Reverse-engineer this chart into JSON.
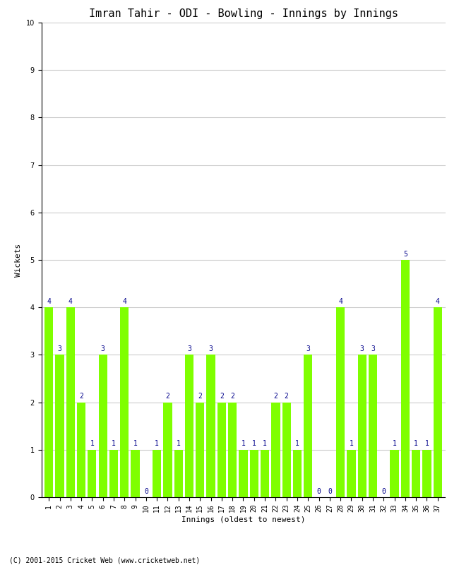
{
  "title": "Imran Tahir - ODI - Bowling - Innings by Innings",
  "xlabel": "Innings (oldest to newest)",
  "ylabel": "Wickets",
  "wickets": [
    4,
    3,
    4,
    2,
    1,
    3,
    1,
    4,
    1,
    0,
    1,
    2,
    1,
    3,
    2,
    3,
    2,
    2,
    1,
    1,
    1,
    2,
    2,
    1,
    3,
    0,
    0,
    4,
    1,
    3,
    3,
    0,
    1,
    5,
    1,
    1,
    4
  ],
  "bar_color": "#7FFF00",
  "label_color": "#00008B",
  "bg_color": "#FFFFFF",
  "ylim": [
    0,
    10
  ],
  "yticks": [
    0,
    1,
    2,
    3,
    4,
    5,
    6,
    7,
    8,
    9,
    10
  ],
  "grid_color": "#CCCCCC",
  "title_fontsize": 11,
  "axis_label_fontsize": 8,
  "tick_fontsize": 7,
  "bar_label_fontsize": 7,
  "copyright": "(C) 2001-2015 Cricket Web (www.cricketweb.net)",
  "copyright_fontsize": 7
}
